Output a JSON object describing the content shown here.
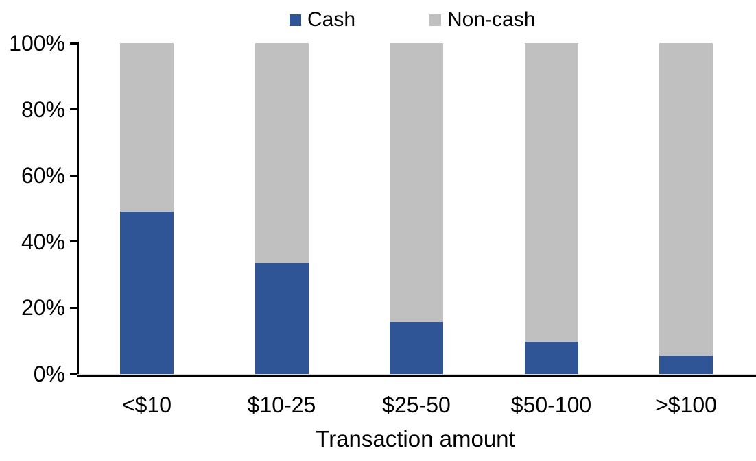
{
  "legend": {
    "items": [
      {
        "label": "Cash",
        "color": "#2F5597"
      },
      {
        "label": "Non-cash",
        "color": "#C0C0C0"
      }
    ]
  },
  "chart_data": {
    "type": "bar",
    "stacked": true,
    "categories": [
      "<$10",
      "$10-25",
      "$25-50",
      "$50-100",
      ">$100"
    ],
    "series": [
      {
        "name": "Cash",
        "color": "#2F5597",
        "values": [
          49,
          33.5,
          15.7,
          9.7,
          5.6
        ]
      },
      {
        "name": "Non-cash",
        "color": "#C0C0C0",
        "values": [
          51,
          66.5,
          84.3,
          90.3,
          94.4
        ]
      }
    ],
    "title": "",
    "xlabel": "Transaction amount",
    "ylabel": "",
    "ylim": [
      0,
      100
    ],
    "yticks": [
      {
        "value": 0,
        "label": "0%"
      },
      {
        "value": 20,
        "label": "20%"
      },
      {
        "value": 40,
        "label": "40%"
      },
      {
        "value": 60,
        "label": "60%"
      },
      {
        "value": 80,
        "label": "80%"
      },
      {
        "value": 100,
        "label": "100%"
      }
    ],
    "grid": false,
    "legend_position": "top"
  }
}
